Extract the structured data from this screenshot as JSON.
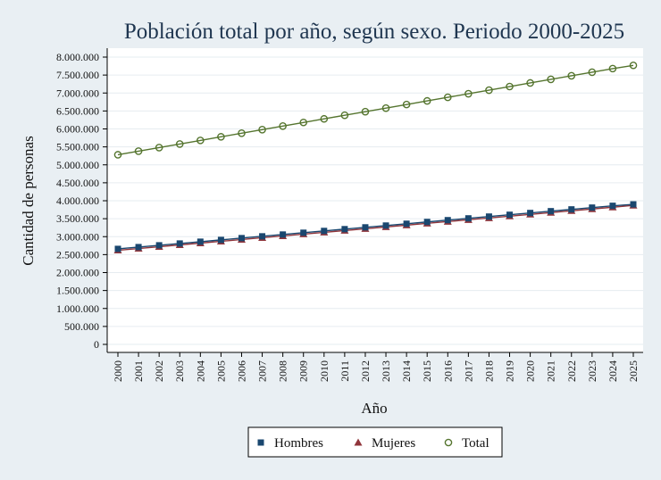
{
  "chart_data": {
    "type": "line",
    "title": "Población total por año, según sexo. Periodo 2000-2025",
    "xlabel": "Año",
    "ylabel": "Cantidad de personas",
    "categories": [
      "2000",
      "2001",
      "2002",
      "2003",
      "2004",
      "2005",
      "2006",
      "2007",
      "2008",
      "2009",
      "2010",
      "2011",
      "2012",
      "2013",
      "2014",
      "2015",
      "2016",
      "2017",
      "2018",
      "2019",
      "2020",
      "2021",
      "2022",
      "2023",
      "2024",
      "2025"
    ],
    "ylim": [
      0,
      8000000
    ],
    "yticks": [
      0,
      500000,
      1000000,
      1500000,
      2000000,
      2500000,
      3000000,
      3500000,
      4000000,
      4500000,
      5000000,
      5500000,
      6000000,
      6500000,
      7000000,
      7500000,
      8000000
    ],
    "ytick_labels": [
      "0",
      "500.000",
      "1.000.000",
      "1.500.000",
      "2.000.000",
      "2.500.000",
      "3.000.000",
      "3.500.000",
      "4.000.000",
      "4.500.000",
      "5.000.000",
      "5.500.000",
      "6.000.000",
      "6.500.000",
      "7.000.000",
      "7.500.000",
      "8.000.000"
    ],
    "grid": true,
    "legend_position": "bottom",
    "series": [
      {
        "name": "Hombres",
        "color": "#1a476f",
        "marker": "square",
        "values": [
          2660000,
          2710000,
          2760000,
          2810000,
          2860000,
          2910000,
          2960000,
          3010000,
          3060000,
          3110000,
          3160000,
          3210000,
          3260000,
          3310000,
          3360000,
          3410000,
          3460000,
          3510000,
          3560000,
          3610000,
          3660000,
          3710000,
          3760000,
          3810000,
          3860000,
          3900000
        ]
      },
      {
        "name": "Mujeres",
        "color": "#90353b",
        "marker": "triangle",
        "values": [
          2620000,
          2670000,
          2720000,
          2770000,
          2820000,
          2870000,
          2920000,
          2970000,
          3020000,
          3070000,
          3120000,
          3170000,
          3220000,
          3270000,
          3320000,
          3370000,
          3420000,
          3470000,
          3520000,
          3570000,
          3620000,
          3670000,
          3720000,
          3770000,
          3820000,
          3870000
        ]
      },
      {
        "name": "Total",
        "color": "#55752f",
        "marker": "circle-hollow",
        "values": [
          5280000,
          5380000,
          5480000,
          5580000,
          5680000,
          5780000,
          5880000,
          5980000,
          6080000,
          6180000,
          6280000,
          6380000,
          6480000,
          6580000,
          6680000,
          6780000,
          6880000,
          6980000,
          7080000,
          7180000,
          7280000,
          7380000,
          7480000,
          7580000,
          7680000,
          7770000
        ]
      }
    ]
  }
}
